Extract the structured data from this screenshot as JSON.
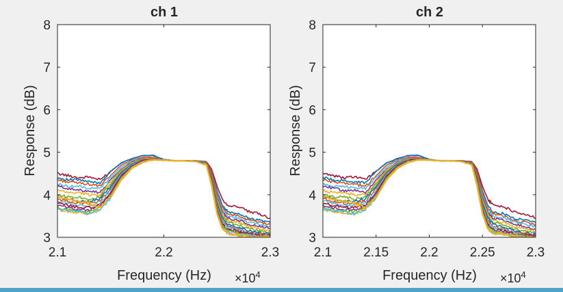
{
  "chart_data": [
    {
      "type": "line",
      "title": "ch 1",
      "xlabel": "Frequency (Hz)",
      "ylabel": "Response (dB)",
      "x_exponent_label": "×10",
      "x_exponent_power": "4",
      "xlim": [
        2.1,
        2.3
      ],
      "ylim": [
        3,
        8
      ],
      "x_ticks": [
        2.1,
        2.2,
        2.3
      ],
      "x_tick_labels": [
        "2.1",
        "2.2",
        "2.3"
      ],
      "y_ticks": [
        3,
        4,
        5,
        6,
        7,
        8
      ],
      "y_tick_labels": [
        "3",
        "4",
        "5",
        "6",
        "7",
        "8"
      ],
      "grid": false,
      "series_count": 16
    },
    {
      "type": "line",
      "title": "ch 2",
      "xlabel": "Frequency (Hz)",
      "ylabel": "Response (dB)",
      "x_exponent_label": "×10",
      "x_exponent_power": "4",
      "xlim": [
        2.1,
        2.3
      ],
      "ylim": [
        3,
        8
      ],
      "x_ticks": [
        2.1,
        2.15,
        2.2,
        2.25,
        2.3
      ],
      "x_tick_labels": [
        "2.1",
        "2.15",
        "2.2",
        "2.25",
        "2.3"
      ],
      "y_ticks": [
        3,
        4,
        5,
        6,
        7,
        8
      ],
      "y_tick_labels": [
        "3",
        "4",
        "5",
        "6",
        "7",
        "8"
      ],
      "grid": false,
      "series_count": 16
    }
  ],
  "series_profile": {
    "x": [
      2.1,
      2.11,
      2.12,
      2.13,
      2.14,
      2.15,
      2.16,
      2.17,
      2.18,
      2.19,
      2.2,
      2.21,
      2.22,
      2.23,
      2.24,
      2.245,
      2.25,
      2.255,
      2.26,
      2.27,
      2.28,
      2.29,
      2.3
    ],
    "series": [
      {
        "values": [
          4.5,
          4.45,
          4.4,
          4.42,
          4.35,
          4.55,
          4.75,
          4.85,
          4.92,
          4.92,
          4.83,
          4.8,
          4.8,
          4.8,
          4.78,
          4.6,
          4.2,
          3.9,
          3.75,
          3.72,
          3.6,
          3.55,
          3.45
        ]
      },
      {
        "values": [
          4.4,
          4.35,
          4.35,
          4.3,
          4.28,
          4.55,
          4.75,
          4.85,
          4.92,
          4.93,
          4.83,
          4.8,
          4.8,
          4.8,
          4.77,
          4.55,
          4.1,
          3.75,
          3.6,
          3.55,
          3.45,
          3.4,
          3.35
        ]
      },
      {
        "values": [
          4.35,
          4.3,
          4.28,
          4.25,
          4.2,
          4.45,
          4.7,
          4.82,
          4.88,
          4.88,
          4.82,
          4.8,
          4.8,
          4.8,
          4.77,
          4.55,
          4.05,
          3.7,
          3.55,
          3.5,
          3.4,
          3.35,
          3.3
        ]
      },
      {
        "values": [
          4.25,
          4.2,
          4.2,
          4.15,
          4.15,
          4.4,
          4.65,
          4.8,
          4.86,
          4.86,
          4.82,
          4.8,
          4.8,
          4.8,
          4.76,
          4.5,
          4.0,
          3.65,
          3.5,
          3.45,
          3.35,
          3.3,
          3.25
        ]
      },
      {
        "values": [
          4.2,
          4.15,
          4.1,
          4.1,
          4.05,
          4.35,
          4.6,
          4.77,
          4.85,
          4.86,
          4.82,
          4.8,
          4.8,
          4.79,
          4.76,
          4.5,
          3.95,
          3.6,
          3.45,
          3.4,
          3.3,
          3.25,
          3.2
        ]
      },
      {
        "values": [
          4.1,
          4.05,
          4.05,
          4.0,
          4.0,
          4.3,
          4.58,
          4.75,
          4.84,
          4.86,
          4.82,
          4.8,
          4.8,
          4.79,
          4.75,
          4.45,
          3.9,
          3.55,
          3.4,
          3.35,
          3.25,
          3.2,
          3.15
        ]
      },
      {
        "values": [
          4.0,
          3.95,
          3.95,
          3.9,
          3.95,
          4.25,
          4.55,
          4.73,
          4.82,
          4.85,
          4.82,
          4.8,
          4.8,
          4.79,
          4.75,
          4.45,
          3.85,
          3.5,
          3.35,
          3.3,
          3.2,
          3.15,
          3.1
        ]
      },
      {
        "values": [
          3.95,
          3.9,
          3.85,
          3.85,
          3.9,
          4.2,
          4.52,
          4.72,
          4.82,
          4.85,
          4.82,
          4.8,
          4.8,
          4.79,
          4.74,
          4.4,
          3.8,
          3.45,
          3.3,
          3.25,
          3.15,
          3.1,
          3.08
        ]
      },
      {
        "values": [
          3.9,
          3.85,
          3.8,
          3.8,
          3.85,
          4.15,
          4.5,
          4.7,
          4.81,
          4.85,
          4.82,
          4.8,
          4.8,
          4.79,
          4.74,
          4.4,
          3.75,
          3.4,
          3.25,
          3.2,
          3.12,
          3.08,
          3.05
        ]
      },
      {
        "values": [
          3.85,
          3.8,
          3.75,
          3.75,
          3.8,
          4.1,
          4.48,
          4.7,
          4.8,
          4.84,
          4.82,
          4.8,
          4.8,
          4.79,
          4.73,
          4.35,
          3.7,
          3.35,
          3.22,
          3.18,
          3.1,
          3.06,
          3.04
        ]
      },
      {
        "values": [
          3.8,
          3.75,
          3.7,
          3.7,
          3.75,
          4.05,
          4.45,
          4.68,
          4.8,
          4.84,
          4.82,
          4.8,
          4.8,
          4.79,
          4.73,
          4.35,
          3.65,
          3.3,
          3.2,
          3.15,
          3.08,
          3.05,
          3.03
        ]
      },
      {
        "values": [
          3.75,
          3.7,
          3.65,
          3.65,
          3.72,
          4.0,
          4.42,
          4.66,
          4.79,
          4.84,
          4.82,
          4.8,
          4.8,
          4.79,
          4.72,
          4.3,
          3.62,
          3.28,
          3.18,
          3.12,
          3.06,
          3.04,
          3.02
        ]
      },
      {
        "values": [
          3.7,
          3.65,
          3.62,
          3.6,
          3.7,
          3.98,
          4.4,
          4.65,
          4.78,
          4.83,
          4.82,
          4.8,
          4.8,
          4.78,
          4.72,
          4.3,
          3.6,
          3.25,
          3.15,
          3.1,
          3.05,
          3.03,
          3.01
        ]
      },
      {
        "values": [
          3.65,
          3.6,
          3.58,
          3.55,
          3.68,
          3.95,
          4.38,
          4.64,
          4.78,
          4.83,
          4.82,
          4.8,
          4.8,
          4.78,
          4.71,
          4.25,
          3.58,
          3.22,
          3.12,
          3.08,
          3.04,
          3.02,
          3.0
        ]
      },
      {
        "values": [
          3.68,
          3.62,
          3.6,
          3.55,
          3.65,
          3.92,
          4.36,
          4.63,
          4.77,
          4.83,
          4.81,
          4.8,
          4.8,
          4.78,
          4.71,
          4.25,
          3.55,
          3.2,
          3.1,
          3.06,
          3.03,
          3.01,
          3.0
        ]
      },
      {
        "values": [
          3.95,
          3.9,
          3.85,
          3.8,
          3.7,
          3.95,
          4.35,
          4.62,
          4.76,
          4.82,
          4.81,
          4.8,
          4.8,
          4.78,
          4.7,
          4.2,
          3.55,
          3.2,
          3.1,
          3.05,
          3.02,
          3.0,
          3.0
        ]
      }
    ]
  },
  "series_colors": [
    "#A2142F",
    "#0072BD",
    "#D95319",
    "#4DBEEE",
    "#7E2F8E",
    "#EDB120",
    "#77AC30",
    "#0072BD",
    "#D95319",
    "#4DBEEE",
    "#A2142F",
    "#7E2F8E",
    "#77AC30",
    "#EDB120",
    "#4DBEEE",
    "#EDB120"
  ]
}
